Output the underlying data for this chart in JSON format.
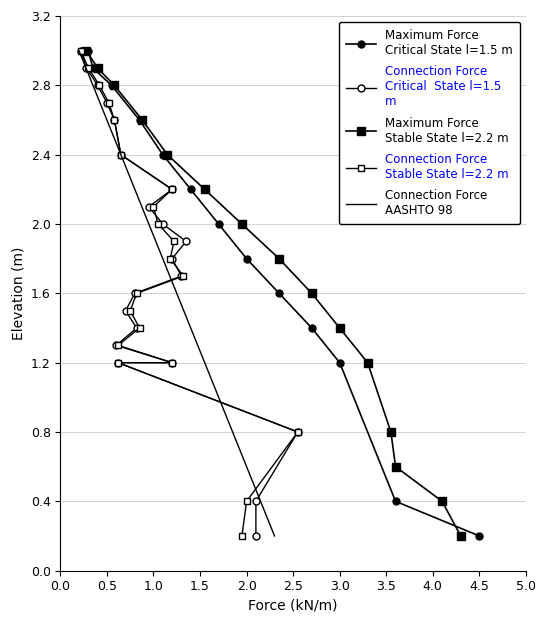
{
  "title": "",
  "xlabel": "Force (kN/m)",
  "ylabel": "Elevation (m)",
  "xlim": [
    0,
    5
  ],
  "ylim": [
    0,
    3.2
  ],
  "xticks": [
    0,
    0.5,
    1.0,
    1.5,
    2.0,
    2.5,
    3.0,
    3.5,
    4.0,
    4.5,
    5.0
  ],
  "yticks": [
    0,
    0.4,
    0.8,
    1.2,
    1.6,
    2.0,
    2.4,
    2.8,
    3.2
  ],
  "max_force_critical": {
    "force": [
      0.3,
      0.35,
      0.55,
      0.85,
      1.1,
      1.4,
      1.7,
      2.0,
      2.35,
      2.7,
      3.0,
      3.6,
      4.5
    ],
    "elev": [
      3.0,
      2.9,
      2.8,
      2.6,
      2.4,
      2.2,
      2.0,
      1.8,
      1.6,
      1.4,
      1.2,
      0.4,
      0.2
    ],
    "color": "black",
    "marker": "o",
    "markersize": 5,
    "markerfacecolor": "black",
    "linestyle": "-",
    "linewidth": 1.2,
    "label": "Maximum Force\nCritical State l=1.5 m"
  },
  "conn_force_critical": {
    "force": [
      0.22,
      0.28,
      0.4,
      0.5,
      0.58,
      0.65,
      1.2,
      0.95,
      1.1,
      1.35,
      1.2,
      1.3,
      0.8,
      0.7,
      0.82,
      0.6,
      1.2,
      0.62,
      2.55,
      2.1,
      2.1
    ],
    "elev": [
      3.0,
      2.9,
      2.8,
      2.7,
      2.6,
      2.4,
      2.2,
      2.1,
      2.0,
      1.9,
      1.8,
      1.7,
      1.6,
      1.5,
      1.4,
      1.3,
      1.2,
      1.2,
      0.8,
      0.4,
      0.2
    ],
    "color": "black",
    "marker": "o",
    "markersize": 5,
    "markerfacecolor": "white",
    "linestyle": "-",
    "linewidth": 1.0,
    "label": "Connection Force\nCritical  State l=1.5\nm"
  },
  "max_force_stable": {
    "force": [
      0.28,
      0.4,
      0.58,
      0.88,
      1.15,
      1.55,
      1.95,
      2.35,
      2.7,
      3.0,
      3.3,
      3.55,
      3.6,
      4.1,
      4.3
    ],
    "elev": [
      3.0,
      2.9,
      2.8,
      2.6,
      2.4,
      2.2,
      2.0,
      1.8,
      1.6,
      1.4,
      1.2,
      0.8,
      0.6,
      0.4,
      0.2
    ],
    "color": "black",
    "marker": "s",
    "markersize": 6,
    "markerfacecolor": "black",
    "linestyle": "-",
    "linewidth": 1.2,
    "label": "Maximum Force\nStable State l=2.2 m"
  },
  "conn_force_stable": {
    "force": [
      0.22,
      0.3,
      0.42,
      0.52,
      0.58,
      0.65,
      1.2,
      1.0,
      1.05,
      1.22,
      1.18,
      1.32,
      0.82,
      0.75,
      0.85,
      0.62,
      1.2,
      0.62,
      2.55,
      2.0,
      1.95
    ],
    "elev": [
      3.0,
      2.9,
      2.8,
      2.7,
      2.6,
      2.4,
      2.2,
      2.1,
      2.0,
      1.9,
      1.8,
      1.7,
      1.6,
      1.5,
      1.4,
      1.3,
      1.2,
      1.2,
      0.8,
      0.4,
      0.2
    ],
    "color": "black",
    "marker": "s",
    "markersize": 5,
    "markerfacecolor": "white",
    "linestyle": "-",
    "linewidth": 1.0,
    "label": "Connection Force\nStable State l=2.2 m"
  },
  "aashto": {
    "force": [
      0.2,
      2.3
    ],
    "elev": [
      3.0,
      0.2
    ],
    "color": "black",
    "linestyle": "-",
    "linewidth": 1.0,
    "label": "Connection Force\nAASHTO 98"
  },
  "ylabel_color": "black",
  "ytick_color": "black",
  "xtick_color": "black",
  "legend_fontsize": 8.5,
  "axis_fontsize": 10
}
